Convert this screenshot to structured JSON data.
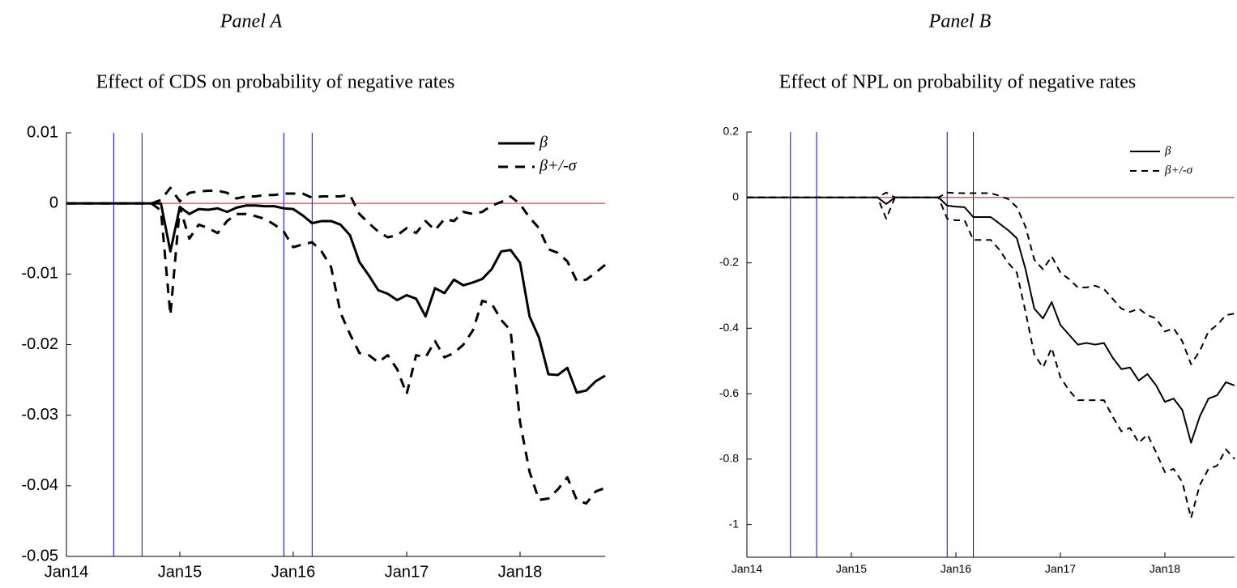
{
  "chart_data": [
    {
      "type": "line",
      "title": "Panel A",
      "subtitle": "Effect of CDS on probability of negative rates",
      "x": [
        "2014-01",
        "2014-02",
        "2014-03",
        "2014-04",
        "2014-05",
        "2014-06",
        "2014-07",
        "2014-08",
        "2014-09",
        "2014-10",
        "2014-11",
        "2014-12",
        "2015-01",
        "2015-02",
        "2015-03",
        "2015-04",
        "2015-05",
        "2015-06",
        "2015-07",
        "2015-08",
        "2015-09",
        "2015-10",
        "2015-11",
        "2015-12",
        "2016-01",
        "2016-02",
        "2016-03",
        "2016-04",
        "2016-05",
        "2016-06",
        "2016-07",
        "2016-08",
        "2016-09",
        "2016-10",
        "2016-11",
        "2016-12",
        "2017-01",
        "2017-02",
        "2017-03",
        "2017-04",
        "2017-05",
        "2017-06",
        "2017-07",
        "2017-08",
        "2017-09",
        "2017-10",
        "2017-11",
        "2017-12",
        "2018-01",
        "2018-02",
        "2018-03",
        "2018-04",
        "2018-05",
        "2018-06",
        "2018-07",
        "2018-08",
        "2018-09",
        "2018-10"
      ],
      "series": [
        {
          "name": "β",
          "color": "#000000",
          "linestyle": "solid",
          "values": [
            0,
            0,
            0,
            0,
            0,
            0,
            0,
            0,
            0,
            0,
            0,
            -0.0068,
            -0.0005,
            -0.0015,
            -0.0008,
            -0.0009,
            -0.0007,
            -0.0012,
            -0.0006,
            -0.0003,
            -0.0003,
            -0.0004,
            -0.0004,
            -0.0007,
            -0.0008,
            -0.0017,
            -0.0028,
            -0.0025,
            -0.0025,
            -0.003,
            -0.0045,
            -0.0083,
            -0.0102,
            -0.0123,
            -0.0128,
            -0.0137,
            -0.013,
            -0.0135,
            -0.016,
            -0.012,
            -0.0127,
            -0.0108,
            -0.0116,
            -0.0112,
            -0.0107,
            -0.0093,
            -0.0068,
            -0.0066,
            -0.0084,
            -0.016,
            -0.019,
            -0.0242,
            -0.0243,
            -0.0233,
            -0.0268,
            -0.0265,
            -0.0252,
            -0.0244
          ]
        },
        {
          "name": "β+/-σ",
          "color": "#000000",
          "linestyle": "dashed",
          "values": [
            0,
            0,
            0,
            0,
            0,
            0,
            0,
            0,
            0,
            0,
            0.0005,
            0.0022,
            0.0003,
            0.0015,
            0.0017,
            0.0018,
            0.0018,
            0.0015,
            0.0007,
            0.001,
            0.001,
            0.0012,
            0.0012,
            0.0014,
            0.0014,
            0.0014,
            0.0008,
            0.001,
            0.001,
            0.001,
            0.0012,
            -0.0015,
            -0.0028,
            -0.004,
            -0.0048,
            -0.0045,
            -0.0035,
            -0.0042,
            -0.0025,
            -0.0038,
            -0.0022,
            -0.0025,
            -0.0012,
            -0.0015,
            -0.0012,
            -0.0003,
            0.0002,
            0.001,
            -0.0001,
            -0.002,
            -0.0035,
            -0.0065,
            -0.007,
            -0.0082,
            -0.011,
            -0.0108,
            -0.0098,
            -0.0087
          ]
        },
        {
          "color": "#000000",
          "linestyle": "dashed",
          "values": [
            0,
            0,
            0,
            0,
            0,
            0,
            0,
            0,
            0,
            0,
            -0.001,
            -0.0158,
            -0.0005,
            -0.005,
            -0.003,
            -0.0035,
            -0.0042,
            -0.0025,
            -0.0015,
            -0.0015,
            -0.0018,
            -0.0022,
            -0.003,
            -0.004,
            -0.0062,
            -0.0058,
            -0.0055,
            -0.0068,
            -0.009,
            -0.0155,
            -0.0185,
            -0.0212,
            -0.0215,
            -0.0225,
            -0.0215,
            -0.0235,
            -0.027,
            -0.0215,
            -0.0218,
            -0.0195,
            -0.0218,
            -0.0212,
            -0.02,
            -0.018,
            -0.0138,
            -0.0142,
            -0.0165,
            -0.018,
            -0.031,
            -0.038,
            -0.042,
            -0.0418,
            -0.0405,
            -0.0388,
            -0.042,
            -0.0425,
            -0.0408,
            -0.0403
          ]
        }
      ],
      "xlim": [
        "2014-01",
        "2018-10"
      ],
      "xticks": [
        {
          "value": "2014-01",
          "label": "Jan14"
        },
        {
          "value": "2015-01",
          "label": "Jan15"
        },
        {
          "value": "2016-01",
          "label": "Jan16"
        },
        {
          "value": "2017-01",
          "label": "Jan17"
        },
        {
          "value": "2018-01",
          "label": "Jan18"
        }
      ],
      "ylim": [
        -0.05,
        0.01
      ],
      "yticks": [
        0.01,
        0,
        -0.01,
        -0.02,
        -0.03,
        -0.04,
        -0.05
      ],
      "vlines": [
        "2014-06",
        "2014-09",
        "2015-12",
        "2016-03"
      ],
      "vline_color": "#0000ff",
      "hline": 0,
      "hline_color": "#ff0000",
      "legend": "upper right",
      "grid": false
    },
    {
      "type": "line",
      "title": "Panel B",
      "subtitle": "Effect of NPL on probability of negative rates",
      "x": [
        "2014-01",
        "2014-02",
        "2014-03",
        "2014-04",
        "2014-05",
        "2014-06",
        "2014-07",
        "2014-08",
        "2014-09",
        "2014-10",
        "2014-11",
        "2014-12",
        "2015-01",
        "2015-02",
        "2015-03",
        "2015-04",
        "2015-05",
        "2015-06",
        "2015-07",
        "2015-08",
        "2015-09",
        "2015-10",
        "2015-11",
        "2015-12",
        "2016-01",
        "2016-02",
        "2016-03",
        "2016-04",
        "2016-05",
        "2016-06",
        "2016-07",
        "2016-08",
        "2016-09",
        "2016-10",
        "2016-11",
        "2016-12",
        "2017-01",
        "2017-02",
        "2017-03",
        "2017-04",
        "2017-05",
        "2017-06",
        "2017-07",
        "2017-08",
        "2017-09",
        "2017-10",
        "2017-11",
        "2017-12",
        "2018-01",
        "2018-02",
        "2018-03",
        "2018-04",
        "2018-05",
        "2018-06",
        "2018-07",
        "2018-08",
        "2018-09"
      ],
      "series": [
        {
          "name": "β",
          "color": "#000000",
          "linestyle": "solid",
          "values": [
            0,
            0,
            0,
            0,
            0,
            0,
            0,
            0,
            0,
            0,
            0,
            0,
            0,
            0,
            0,
            0,
            -0.02,
            0,
            0,
            0,
            0,
            0,
            0,
            -0.025,
            -0.028,
            -0.03,
            -0.06,
            -0.06,
            -0.06,
            -0.08,
            -0.1,
            -0.125,
            -0.22,
            -0.34,
            -0.37,
            -0.32,
            -0.39,
            -0.42,
            -0.45,
            -0.445,
            -0.45,
            -0.445,
            -0.49,
            -0.525,
            -0.52,
            -0.56,
            -0.54,
            -0.575,
            -0.625,
            -0.615,
            -0.65,
            -0.75,
            -0.67,
            -0.615,
            -0.605,
            -0.565,
            -0.575
          ]
        },
        {
          "name": "β+/-σ",
          "color": "#000000",
          "linestyle": "dashed",
          "values": [
            0,
            0,
            0,
            0,
            0,
            0,
            0,
            0,
            0,
            0,
            0,
            0,
            0,
            0,
            0,
            0,
            0.015,
            0,
            0,
            0,
            0,
            0,
            0,
            0.015,
            0.013,
            0.013,
            0.013,
            0.013,
            0.013,
            0.005,
            -0.005,
            -0.03,
            -0.09,
            -0.19,
            -0.22,
            -0.18,
            -0.23,
            -0.25,
            -0.275,
            -0.275,
            -0.27,
            -0.28,
            -0.31,
            -0.34,
            -0.35,
            -0.34,
            -0.36,
            -0.37,
            -0.41,
            -0.4,
            -0.44,
            -0.51,
            -0.47,
            -0.41,
            -0.39,
            -0.36,
            -0.355
          ]
        },
        {
          "color": "#000000",
          "linestyle": "dashed",
          "values": [
            0,
            0,
            0,
            0,
            0,
            0,
            0,
            0,
            0,
            0,
            0,
            0,
            0,
            0,
            0,
            0,
            -0.065,
            0,
            0,
            0,
            0,
            0,
            0,
            -0.065,
            -0.07,
            -0.07,
            -0.13,
            -0.13,
            -0.13,
            -0.16,
            -0.2,
            -0.23,
            -0.35,
            -0.48,
            -0.52,
            -0.46,
            -0.55,
            -0.59,
            -0.62,
            -0.62,
            -0.62,
            -0.62,
            -0.67,
            -0.715,
            -0.705,
            -0.75,
            -0.725,
            -0.78,
            -0.84,
            -0.83,
            -0.87,
            -0.98,
            -0.88,
            -0.83,
            -0.82,
            -0.77,
            -0.8
          ]
        }
      ],
      "xlim": [
        "2014-01",
        "2018-09"
      ],
      "xticks": [
        {
          "value": "2014-01",
          "label": "Jan14"
        },
        {
          "value": "2015-01",
          "label": "Jan15"
        },
        {
          "value": "2016-01",
          "label": "Jan16"
        },
        {
          "value": "2017-01",
          "label": "Jan17"
        },
        {
          "value": "2018-01",
          "label": "Jan18"
        }
      ],
      "ylim": [
        -1.1,
        0.2
      ],
      "yticks": [
        0.2,
        0,
        -0.2,
        -0.4,
        -0.6,
        -0.8,
        -1
      ],
      "vlines": [
        "2014-06",
        "2014-09",
        "2015-12",
        "2016-03"
      ],
      "vline_color": "#0000ff",
      "hline": 0,
      "hline_color": "#ff0000",
      "legend": "upper right",
      "grid": false
    }
  ]
}
